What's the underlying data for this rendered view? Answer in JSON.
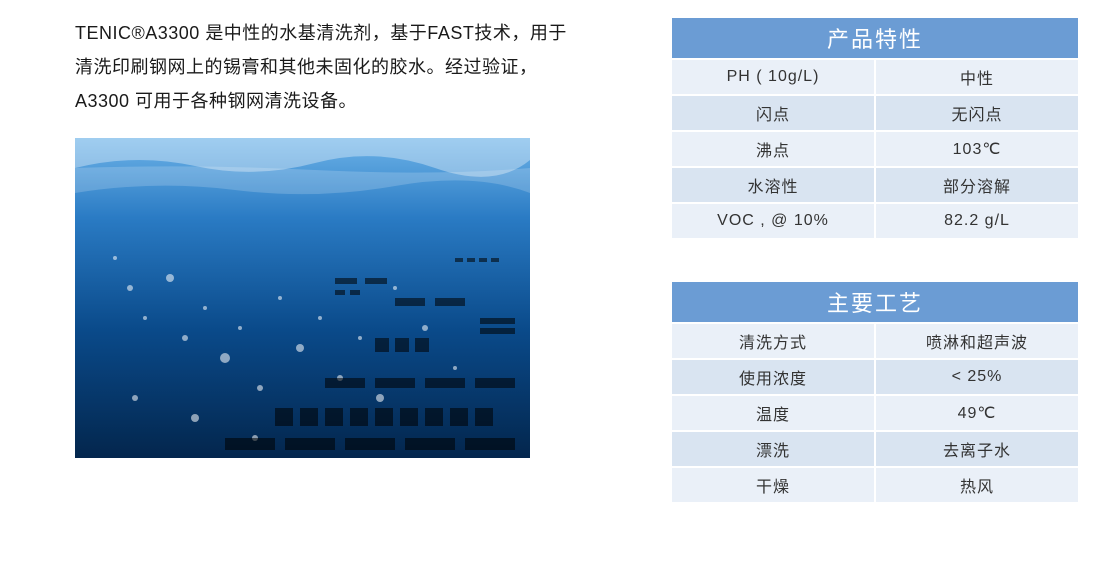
{
  "description": "TENIC®A3300 是中性的水基清洗剂，基于FAST技术，用于清洗印刷钢网上的锡膏和其他未固化的胶水。经过验证，A3300 可用于各种钢网清洗设备。",
  "colors": {
    "table_header_bg": "#6b9cd4",
    "table_header_text": "#ffffff",
    "row_odd_bg": "#eaf0f8",
    "row_even_bg": "#d9e4f1",
    "body_text": "#1a1a1a",
    "table_text": "#333333",
    "image_grad_top": "#6db3e8",
    "image_grad_mid": "#0a4a8a",
    "image_grad_bottom": "#03264d"
  },
  "tables": [
    {
      "title": "产品特性",
      "rows": [
        {
          "label": "PH ( 10g/L)",
          "value": "中性"
        },
        {
          "label": "闪点",
          "value": "无闪点"
        },
        {
          "label": "沸点",
          "value": "103℃"
        },
        {
          "label": "水溶性",
          "value": "部分溶解"
        },
        {
          "label": "VOC , @ 10%",
          "value": "82.2  g/L"
        }
      ]
    },
    {
      "title": "主要工艺",
      "rows": [
        {
          "label": "清洗方式",
          "value": "喷淋和超声波"
        },
        {
          "label": "使用浓度",
          "value": "< 25%"
        },
        {
          "label": "温度",
          "value": "49℃"
        },
        {
          "label": "漂洗",
          "value": "去离子水"
        },
        {
          "label": "干燥",
          "value": "热风"
        }
      ]
    }
  ]
}
